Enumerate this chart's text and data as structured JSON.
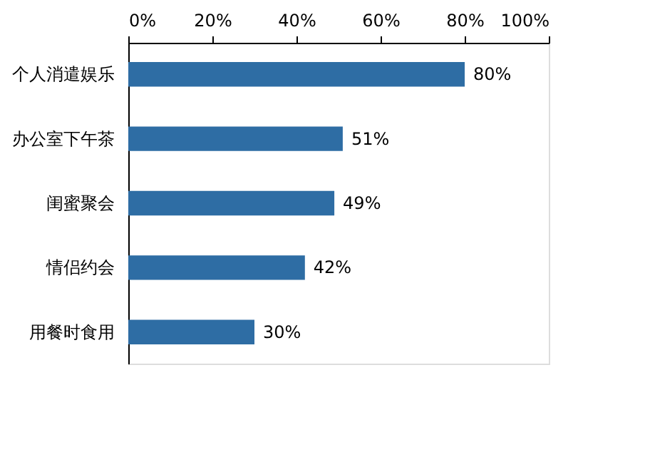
{
  "chart_data": {
    "type": "bar",
    "orientation": "horizontal",
    "categories": [
      "个人消遣娱乐",
      "办公室下午茶",
      "闺蜜聚会",
      "情侣约会",
      "用餐时食用"
    ],
    "values": [
      80,
      51,
      49,
      42,
      30
    ],
    "value_labels": [
      "80%",
      "51%",
      "49%",
      "42%",
      "30%"
    ],
    "color": "#2e6da4",
    "xlim": [
      0,
      100
    ],
    "xticks": [
      {
        "value": 0,
        "label": "0%"
      },
      {
        "value": 20,
        "label": "20%"
      },
      {
        "value": 40,
        "label": "40%"
      },
      {
        "value": 60,
        "label": "60%"
      },
      {
        "value": 80,
        "label": "80%"
      },
      {
        "value": 100,
        "label": "100%"
      }
    ],
    "grid": false
  }
}
